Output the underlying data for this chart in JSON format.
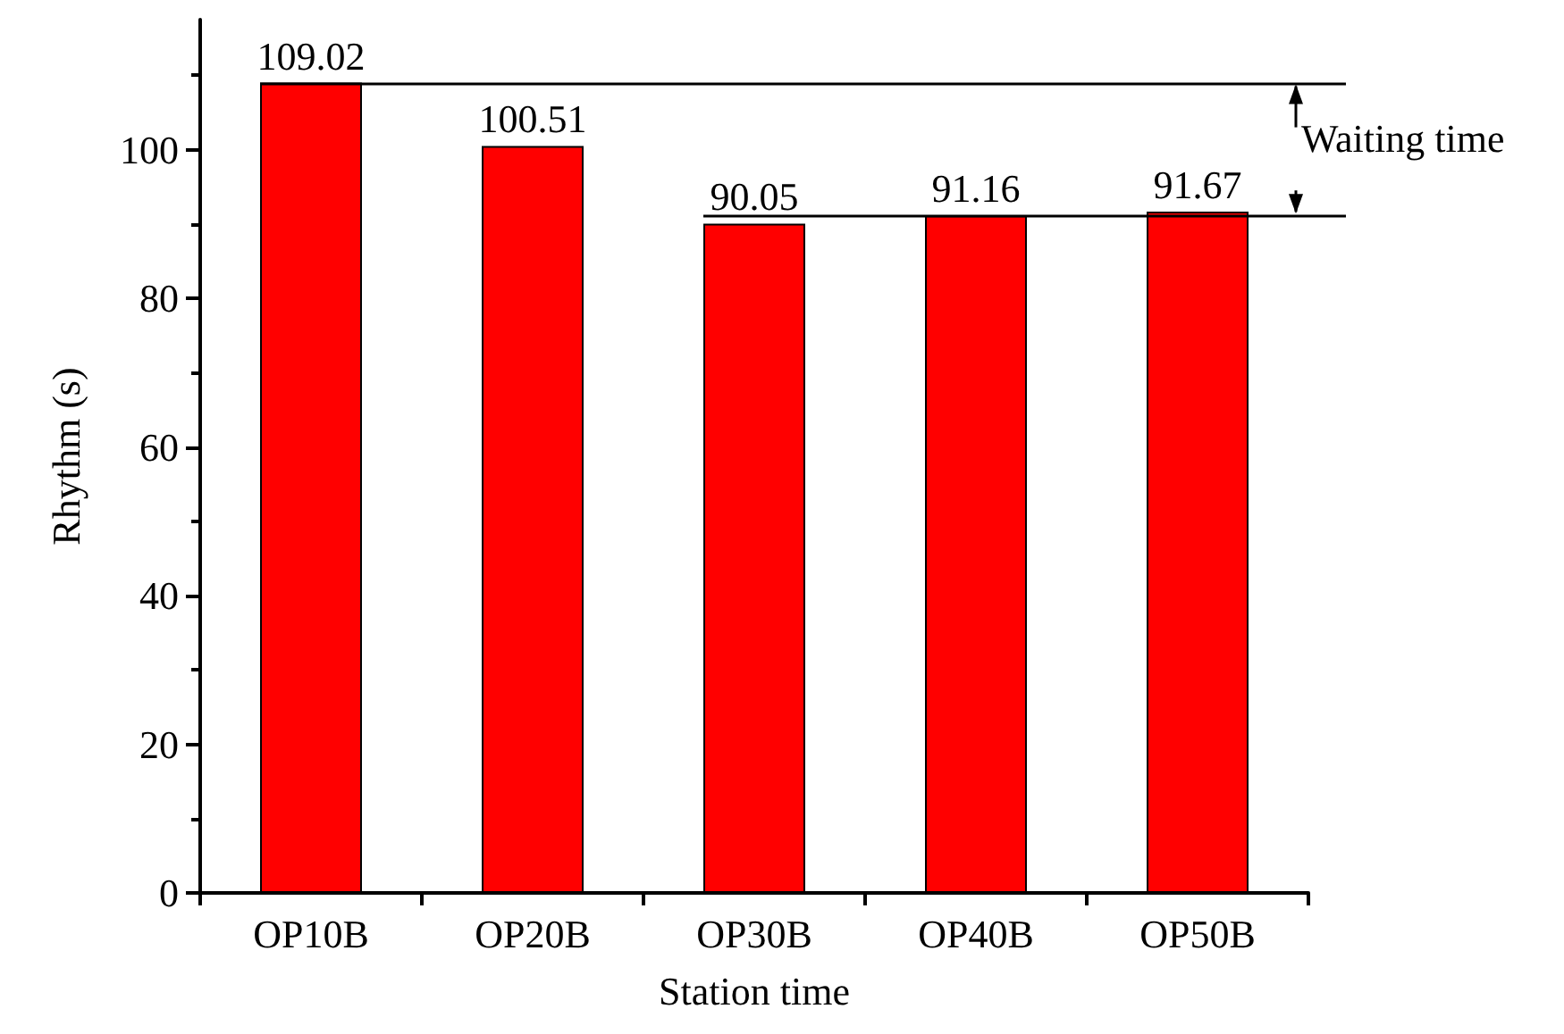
{
  "chart_data": {
    "type": "bar",
    "xlabel": "Station time",
    "ylabel": "Rhythm (s)",
    "categories": [
      "OP10B",
      "OP20B",
      "OP30B",
      "OP40B",
      "OP50B"
    ],
    "values": [
      109.02,
      100.51,
      90.05,
      91.16,
      91.67
    ],
    "color": "#ff0000",
    "data_labels": true,
    "ylim": [
      0,
      117.5
    ],
    "yticks": [
      0,
      20,
      40,
      60,
      80,
      100
    ],
    "ref_lines": [
      {
        "axis": "y",
        "value": 109.02,
        "label": null,
        "color": "#000000",
        "line_style": "solid"
      },
      {
        "axis": "y",
        "value": 91.16,
        "label": null,
        "color": "#000000",
        "line_style": "solid"
      }
    ],
    "annotations": [
      "Waiting time"
    ],
    "grid": false
  }
}
